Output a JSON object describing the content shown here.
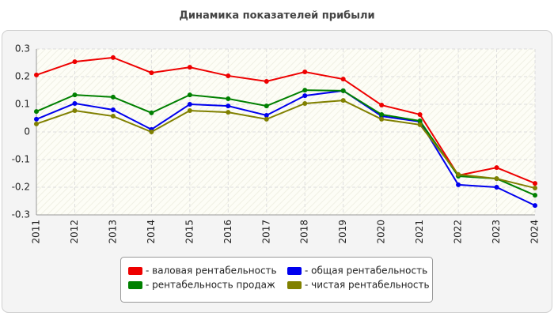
{
  "chart_data": {
    "type": "line",
    "title": "Динамика показателей прибыли",
    "categories": [
      "2011",
      "2012",
      "2013",
      "2014",
      "2015",
      "2016",
      "2017",
      "2018",
      "2019",
      "2020",
      "2021",
      "2022",
      "2023",
      "2024"
    ],
    "series": [
      {
        "name": "- валовая рентабельность",
        "color": "#ee0000",
        "values": [
          0.206,
          0.254,
          0.269,
          0.214,
          0.234,
          0.203,
          0.183,
          0.217,
          0.191,
          0.097,
          0.063,
          -0.157,
          -0.129,
          -0.186
        ]
      },
      {
        "name": "- общая рентабельность",
        "color": "#0000ee",
        "values": [
          0.046,
          0.103,
          0.08,
          0.009,
          0.1,
          0.094,
          0.06,
          0.131,
          0.149,
          0.057,
          0.037,
          -0.191,
          -0.2,
          -0.266
        ]
      },
      {
        "name": "- рентабельность продаж",
        "color": "#008000",
        "values": [
          0.074,
          0.134,
          0.126,
          0.069,
          0.134,
          0.12,
          0.094,
          0.151,
          0.149,
          0.063,
          0.04,
          -0.16,
          -0.169,
          -0.229
        ]
      },
      {
        "name": "- чистая рентабельность",
        "color": "#808000",
        "values": [
          0.029,
          0.077,
          0.057,
          0,
          0.077,
          0.071,
          0.046,
          0.103,
          0.114,
          0.046,
          0.026,
          -0.154,
          -0.169,
          -0.203
        ]
      }
    ],
    "ylim": [
      -0.3,
      0.3
    ],
    "yticks": [
      0.3,
      0.2,
      0.1,
      0,
      -0.1,
      -0.2,
      -0.3
    ],
    "grid": true
  }
}
